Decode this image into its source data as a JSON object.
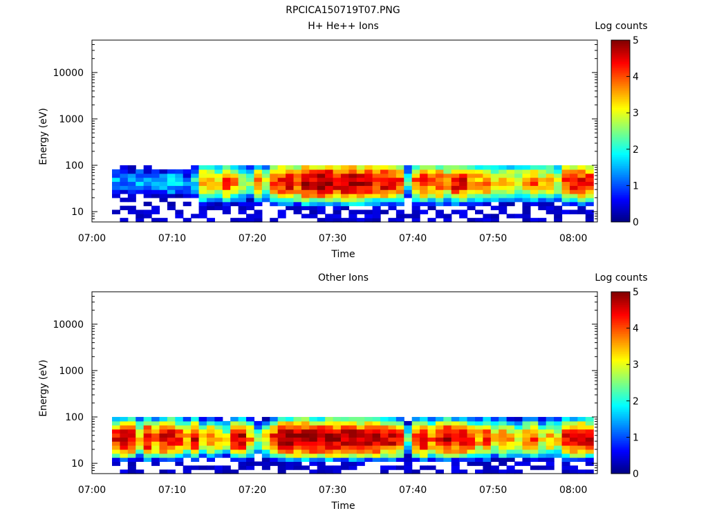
{
  "figure": {
    "title": "RPCICA150719T07.PNG"
  },
  "chart_data": [
    {
      "type": "heatmap",
      "title": "H+ He++ Ions",
      "xlabel": "Time",
      "ylabel": "Energy (eV)",
      "y_scale": "log",
      "ylim": [
        6,
        50000
      ],
      "xlim": [
        "07:00",
        "08:03"
      ],
      "x_ticks": [
        "07:00",
        "07:10",
        "07:20",
        "07:30",
        "07:40",
        "07:50",
        "08:00"
      ],
      "y_ticks": [
        "10",
        "100",
        "1000",
        "10000"
      ],
      "data_time_range": [
        "07:02.5",
        "08:02.5"
      ],
      "data_energy_range_eV": [
        6,
        100
      ],
      "colorbar": {
        "label": "Log counts",
        "ticks": [
          "0",
          "1",
          "2",
          "3",
          "4",
          "5"
        ],
        "range": [
          0,
          5
        ],
        "colormap": "jet"
      },
      "profile": [
        1.5,
        1.3,
        1.4,
        1.6,
        1.3,
        1.4,
        1.5,
        1.7,
        1.6,
        1.2,
        1.9,
        3.6,
        3.8,
        3.3,
        4.1,
        3.6,
        3.0,
        2.6,
        3.6,
        3.1,
        4.0,
        4.4,
        4.6,
        4.2,
        4.8,
        4.7,
        4.9,
        5.0,
        4.6,
        4.8,
        4.9,
        4.7,
        4.5,
        4.3,
        4.6,
        4.4,
        4.1,
        2.2,
        4.0,
        4.3,
        3.8,
        4.2,
        3.7,
        4.5,
        4.4,
        3.9,
        3.6,
        3.9,
        3.4,
        3.6,
        3.5,
        3.2,
        3.5,
        3.9,
        3.3,
        3.5,
        3.0,
        4.2,
        4.3,
        4.4,
        4.4
      ]
    },
    {
      "type": "heatmap",
      "title": "Other Ions",
      "xlabel": "Time",
      "ylabel": "Energy (eV)",
      "y_scale": "log",
      "ylim": [
        6,
        50000
      ],
      "xlim": [
        "07:00",
        "08:03"
      ],
      "x_ticks": [
        "07:00",
        "07:10",
        "07:20",
        "07:30",
        "07:40",
        "07:50",
        "08:00"
      ],
      "y_ticks": [
        "10",
        "100",
        "1000",
        "10000"
      ],
      "data_time_range": [
        "07:02.5",
        "08:02.5"
      ],
      "data_energy_range_eV": [
        6,
        100
      ],
      "colorbar": {
        "label": "Log counts",
        "ticks": [
          "0",
          "1",
          "2",
          "3",
          "4",
          "5"
        ],
        "range": [
          0,
          5
        ],
        "colormap": "jet"
      },
      "profile": [
        4.4,
        4.7,
        4.5,
        3.4,
        4.6,
        3.8,
        4.5,
        4.7,
        4.2,
        3.6,
        4.4,
        3.1,
        3.8,
        3.5,
        2.9,
        4.3,
        4.6,
        3.6,
        2.4,
        3.2,
        4.2,
        4.7,
        4.9,
        4.8,
        5.0,
        4.9,
        4.8,
        5.0,
        4.7,
        4.8,
        4.9,
        4.7,
        4.6,
        4.8,
        4.5,
        4.6,
        4.2,
        2.3,
        4.2,
        4.6,
        3.9,
        4.3,
        4.9,
        4.4,
        4.7,
        4.1,
        3.6,
        4.2,
        3.2,
        3.8,
        3.5,
        3.1,
        3.6,
        4.0,
        3.1,
        3.5,
        3.2,
        4.3,
        4.4,
        4.5,
        4.4
      ]
    }
  ]
}
